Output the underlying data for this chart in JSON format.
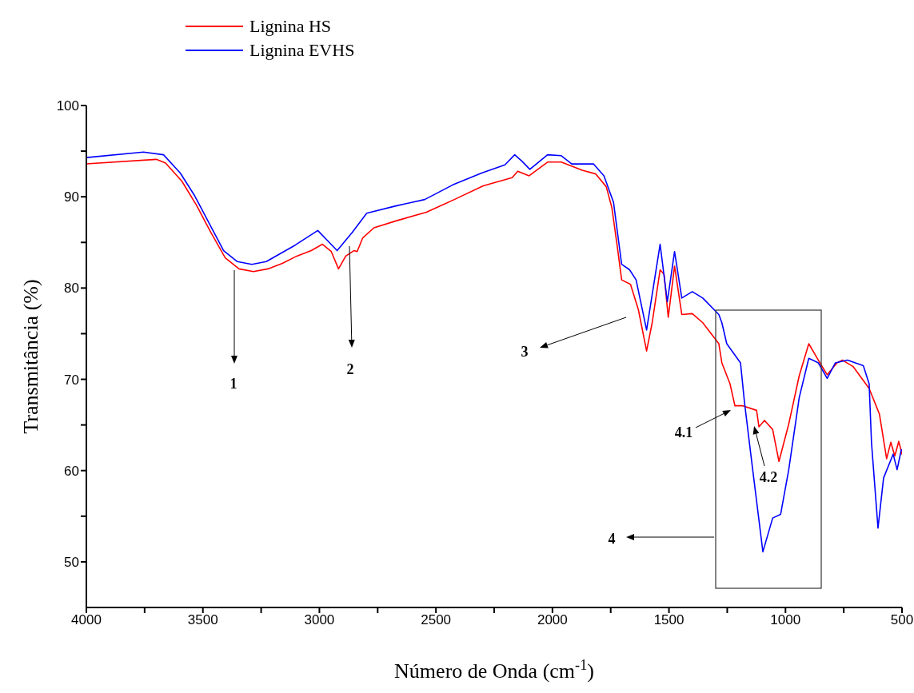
{
  "chart_data": {
    "type": "line",
    "xlabel": "Número de Onda (cm$^{-1}$)",
    "ylabel": "Transmitância (%)",
    "xlim": [
      4000,
      500
    ],
    "xticks": [
      4000,
      {
        "value": 3750,
        "label": null
      },
      3500,
      {
        "value": 3250,
        "label": null
      },
      3000,
      {
        "value": 2750,
        "label": null
      },
      2500,
      {
        "value": 2250,
        "label": null
      },
      2000,
      {
        "value": 1750,
        "label": null
      },
      1500,
      {
        "value": 1250,
        "label": null
      },
      1000,
      {
        "value": 750,
        "label": null
      },
      500
    ],
    "ylim": [
      45,
      100
    ],
    "yticks": [
      50,
      {
        "value": 55,
        "label": null
      },
      60,
      {
        "value": 65,
        "label": null
      },
      70,
      {
        "value": 75,
        "label": null
      },
      80,
      {
        "value": 85,
        "label": null
      },
      90,
      {
        "value": 95,
        "label": null
      },
      100
    ],
    "grid": false,
    "legend": "top",
    "marker": "none",
    "line_style": "solid",
    "series": [
      {
        "name": "Lignina HS",
        "color": "#ff0000",
        "x": [
          4000,
          3700,
          3660,
          3590,
          3528,
          3466,
          3404,
          3345,
          3283,
          3221,
          3159,
          3097,
          3035,
          2987,
          2949,
          2918,
          2887,
          2852,
          2838,
          2814,
          2766,
          2666,
          2541,
          2421,
          2297,
          2173,
          2149,
          2100,
          2021,
          1962,
          1872,
          1814,
          1769,
          1745,
          1721,
          1703,
          1665,
          1631,
          1596,
          1572,
          1538,
          1521,
          1503,
          1476,
          1445,
          1400,
          1355,
          1286,
          1273,
          1238,
          1217,
          1183,
          1124,
          1114,
          1090,
          1055,
          1028,
          986,
          941,
          900,
          859,
          821,
          779,
          755,
          710,
          641,
          597,
          566,
          548,
          531,
          514,
          500
        ],
        "values": [
          93.6,
          94.1,
          93.7,
          91.7,
          89.1,
          86.1,
          83.3,
          82.1,
          81.8,
          82.1,
          82.7,
          83.5,
          84.1,
          84.8,
          84.0,
          82.1,
          83.5,
          84.1,
          84.0,
          85.5,
          86.6,
          87.4,
          88.3,
          89.7,
          91.2,
          92.1,
          92.8,
          92.3,
          93.8,
          93.8,
          92.9,
          92.5,
          91.1,
          88.8,
          84.4,
          80.9,
          80.4,
          77.6,
          73.1,
          76.2,
          82.0,
          81.5,
          76.8,
          82.4,
          77.1,
          77.2,
          76.2,
          73.9,
          71.8,
          69.5,
          67.1,
          67.1,
          66.6,
          64.8,
          65.5,
          64.5,
          61.0,
          65.1,
          70.4,
          73.9,
          72.1,
          70.5,
          71.8,
          72.1,
          71.4,
          69.0,
          66.2,
          61.3,
          63.1,
          61.6,
          63.2,
          61.8
        ]
      },
      {
        "name": "Lignina EVHS",
        "color": "#0000ff",
        "x": [
          4000,
          3755,
          3669,
          3597,
          3535,
          3473,
          3411,
          3352,
          3290,
          3228,
          3104,
          3007,
          2924,
          2859,
          2797,
          2672,
          2548,
          2428,
          2304,
          2204,
          2162,
          2131,
          2097,
          2021,
          1962,
          1917,
          1824,
          1779,
          1738,
          1703,
          1669,
          1641,
          1596,
          1538,
          1507,
          1476,
          1445,
          1400,
          1355,
          1286,
          1273,
          1252,
          1193,
          1176,
          1148,
          1097,
          1055,
          1021,
          986,
          941,
          900,
          859,
          821,
          786,
          734,
          666,
          641,
          631,
          603,
          579,
          538,
          521,
          503
        ],
        "values": [
          94.3,
          94.9,
          94.6,
          92.6,
          90.1,
          87.1,
          84.1,
          82.9,
          82.6,
          82.9,
          84.7,
          86.3,
          84.1,
          86.1,
          88.2,
          89.0,
          89.7,
          91.3,
          92.6,
          93.5,
          94.6,
          93.9,
          93.0,
          94.6,
          94.5,
          93.6,
          93.6,
          92.3,
          89.4,
          82.6,
          82.0,
          80.9,
          75.4,
          84.8,
          78.5,
          84.0,
          78.9,
          79.6,
          78.9,
          77.1,
          76.2,
          73.9,
          71.8,
          67.5,
          61.6,
          51.1,
          54.8,
          55.2,
          60.1,
          68.0,
          72.3,
          71.8,
          70.1,
          71.8,
          72.1,
          71.5,
          69.5,
          63.1,
          53.7,
          59.2,
          61.8,
          60.1,
          62.3
        ]
      }
    ],
    "annotations": [
      "1",
      "2",
      "3",
      "4",
      "4.1",
      "4.2"
    ]
  }
}
